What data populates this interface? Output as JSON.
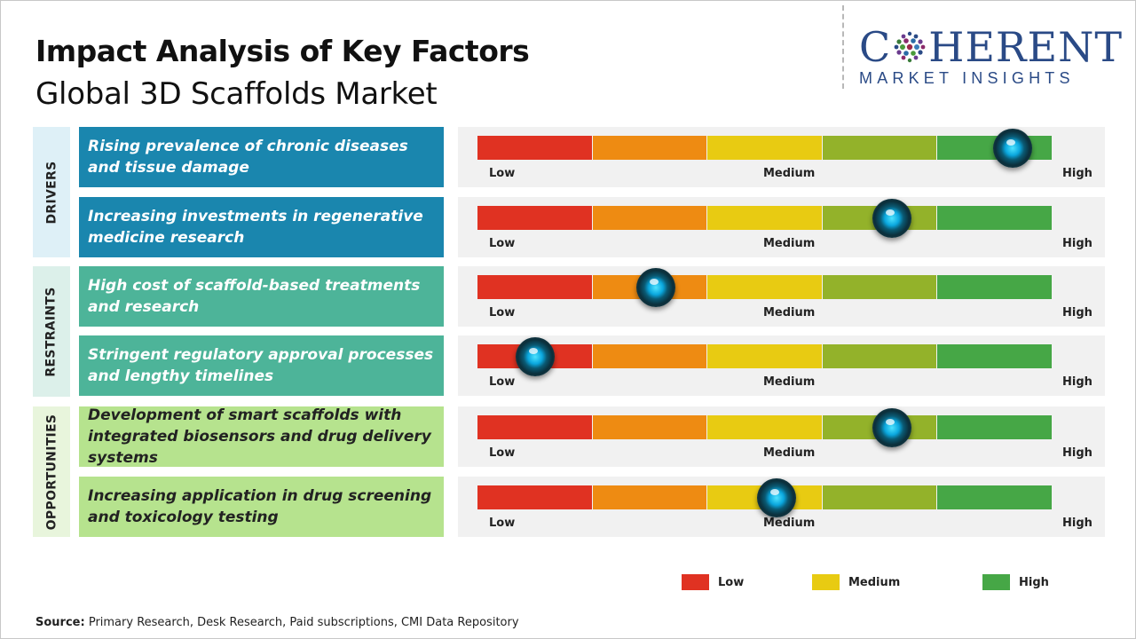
{
  "title": "Impact Analysis of Key Factors",
  "subtitle": "Global 3D Scaffolds Market",
  "logo": {
    "main_left": "C",
    "main_right": "HERENT",
    "sub": "MARKET INSIGHTS"
  },
  "scale_colors": [
    "#e03222",
    "#ee8b12",
    "#e8cb12",
    "#93b22a",
    "#46a746"
  ],
  "gauge_labels": {
    "low": "Low",
    "medium": "Medium",
    "high": "High"
  },
  "categories": [
    {
      "name": "DRIVERS",
      "color": "#def0f7"
    },
    {
      "name": "RESTRAINTS",
      "color": "#dcf0ea"
    },
    {
      "name": "OPPORTUNITIES",
      "color": "#e8f5dc"
    }
  ],
  "chart_data": {
    "type": "gauge",
    "scale": [
      "Low",
      "Medium",
      "High"
    ],
    "value_range": [
      0,
      100
    ],
    "factors": [
      {
        "category": "DRIVERS",
        "label": "Rising prevalence of chronic diseases and tissue damage",
        "value": 93,
        "box_color": "#1a86ae"
      },
      {
        "category": "DRIVERS",
        "label": "Increasing investments in regenerative medicine research",
        "value": 72,
        "box_color": "#1a86ae"
      },
      {
        "category": "RESTRAINTS",
        "label": "High cost of scaffold-based treatments and research",
        "value": 31,
        "box_color": "#4db499"
      },
      {
        "category": "RESTRAINTS",
        "label": "Stringent regulatory approval processes and lengthy timelines",
        "value": 10,
        "box_color": "#4db499"
      },
      {
        "category": "OPPORTUNITIES",
        "label": "Development of smart scaffolds with integrated biosensors and drug delivery systems",
        "value": 72,
        "box_color": "#b6e38e"
      },
      {
        "category": "OPPORTUNITIES",
        "label": "Increasing application in drug screening and toxicology testing",
        "value": 52,
        "box_color": "#b6e38e"
      }
    ]
  },
  "legend": [
    {
      "label": "Low",
      "color": "#e03222"
    },
    {
      "label": "Medium",
      "color": "#e8cb12"
    },
    {
      "label": "High",
      "color": "#46a746"
    }
  ],
  "source": {
    "label": "Source:",
    "text": "Primary Research, Desk Research, Paid subscriptions, CMI Data Repository"
  }
}
